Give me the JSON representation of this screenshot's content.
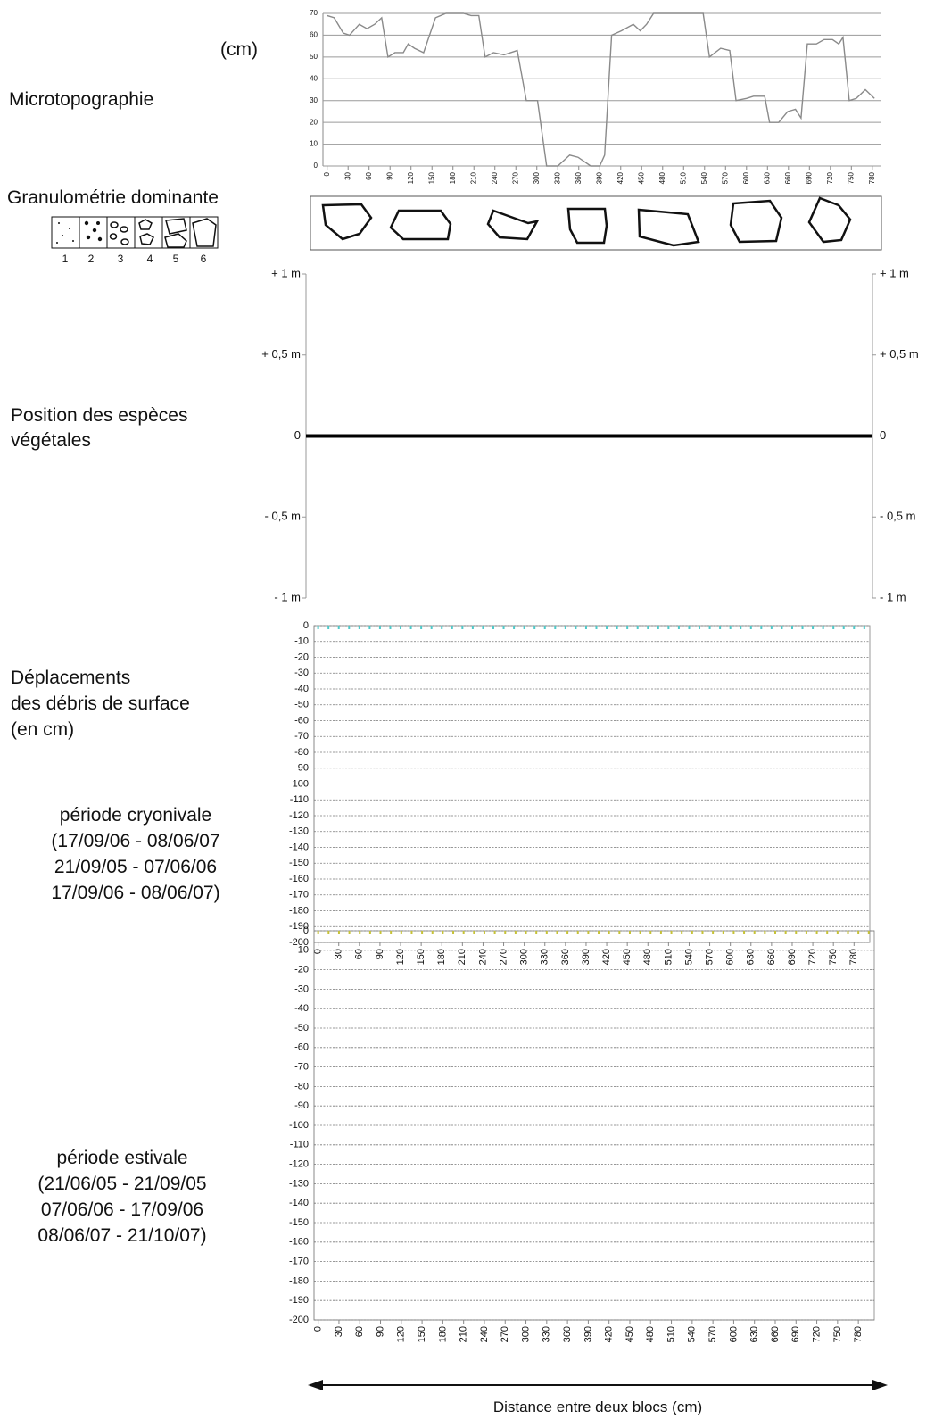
{
  "labels": {
    "unit": "(cm)",
    "microtopo": "Microtopographie",
    "granulo": "Granulométrie dominante",
    "granulo_classes": [
      "1",
      "2",
      "3",
      "4",
      "5",
      "6"
    ],
    "position": [
      "Position des espèces",
      "végétales"
    ],
    "deplacements": [
      "Déplacements",
      "des débris de surface",
      "(en cm)"
    ],
    "cryo": [
      "période cryonivale",
      "(17/09/06 - 08/06/07",
      "21/09/05 - 07/06/06",
      "17/09/06 - 08/06/07)"
    ],
    "estival": [
      "période estivale",
      "(21/06/05 - 21/09/05",
      "07/06/06 - 17/09/06",
      "08/06/07 - 21/10/07)"
    ],
    "distance": "Distance entre deux blocs (cm)"
  },
  "chart_data": [
    {
      "type": "line",
      "color": "#8a8a8a",
      "grid": true,
      "x": [
        0,
        10,
        23,
        32,
        46,
        57,
        68,
        78,
        87,
        97,
        109,
        116,
        125,
        138,
        155,
        170,
        195,
        206,
        217,
        226,
        238,
        253,
        272,
        285,
        301,
        314,
        330,
        347,
        359,
        377,
        390,
        397,
        407,
        421,
        438,
        448,
        457,
        467,
        538,
        547,
        563,
        576,
        585,
        600,
        610,
        626,
        633,
        646,
        659,
        670,
        678,
        687,
        700,
        711,
        723,
        732,
        738,
        747,
        757,
        770,
        783
      ],
      "values": [
        69,
        68,
        61,
        60,
        65,
        63,
        65,
        68,
        50,
        52,
        52,
        56,
        54,
        52,
        68,
        70,
        70,
        69,
        69,
        50,
        52,
        51,
        53,
        30,
        30,
        0,
        0,
        5,
        4,
        0,
        0,
        5,
        60,
        62,
        65,
        62,
        65,
        70,
        70,
        50,
        54,
        53,
        30,
        31,
        32,
        32,
        20,
        20,
        25,
        26,
        22,
        56,
        56,
        58,
        58,
        56,
        59,
        30,
        31,
        35,
        31
      ],
      "xlim": [
        -6,
        793
      ],
      "ylim": [
        0,
        70
      ],
      "xticks": [
        0,
        30,
        60,
        90,
        120,
        150,
        180,
        210,
        240,
        270,
        300,
        330,
        360,
        390,
        420,
        450,
        480,
        510,
        540,
        570,
        600,
        630,
        660,
        690,
        720,
        750,
        780
      ],
      "yticks": [
        0,
        10,
        20,
        30,
        40,
        50,
        60,
        70
      ]
    },
    {
      "type": "axis",
      "ylim": [
        -1,
        1
      ],
      "yticks": [
        {
          "value": 1,
          "label": "+ 1 m"
        },
        {
          "value": 0.5,
          "label": "+ 0,5 m"
        },
        0,
        {
          "value": -0.5,
          "label": "- 0,5 m"
        },
        {
          "value": -1,
          "label": "- 1 m"
        }
      ],
      "y2lim": [
        -1,
        1
      ],
      "y2ticks": [
        {
          "value": 1,
          "label": "+ 1 m"
        },
        {
          "value": 0.5,
          "label": "+ 0,5 m"
        },
        0,
        {
          "value": -0.5,
          "label": "- 0,5 m"
        },
        {
          "value": -1,
          "label": "- 1 m"
        }
      ]
    },
    {
      "type": "scatter",
      "grid": true,
      "x": [
        0,
        15,
        30,
        45,
        60,
        75,
        90,
        105,
        120,
        135,
        150,
        165,
        180,
        195,
        210,
        225,
        240,
        255,
        270,
        285,
        300,
        315,
        330,
        345,
        360,
        375,
        390,
        405,
        420,
        435,
        450,
        465,
        480,
        495,
        510,
        525,
        540,
        555,
        570,
        585,
        600,
        615,
        630,
        645,
        660,
        675,
        690,
        705,
        720,
        735,
        750,
        765,
        780,
        795
      ],
      "series": [
        {
          "color": "#4fc9c9",
          "values": [
            0,
            0,
            0,
            0,
            0,
            0,
            0,
            0,
            0,
            0,
            0,
            0,
            0,
            0,
            0,
            0,
            0,
            0,
            0,
            0,
            0,
            0,
            0,
            0,
            0,
            0,
            0,
            0,
            0,
            0,
            0,
            0,
            0,
            0,
            0,
            0,
            0,
            0,
            0,
            0,
            0,
            0,
            0,
            0,
            0,
            0,
            0,
            0,
            0,
            0,
            0,
            0,
            0,
            0
          ]
        }
      ],
      "xlim": [
        -6,
        803
      ],
      "ylim": [
        -200,
        0
      ],
      "xticks": [
        0,
        30,
        60,
        90,
        120,
        150,
        180,
        210,
        240,
        270,
        300,
        330,
        360,
        390,
        420,
        450,
        480,
        510,
        540,
        570,
        600,
        630,
        660,
        690,
        720,
        750,
        780
      ],
      "yticks": [
        0,
        -10,
        -20,
        -30,
        -40,
        -50,
        -60,
        -70,
        -80,
        -90,
        -100,
        -110,
        -120,
        -130,
        -140,
        -150,
        -160,
        -170,
        -180,
        -190,
        -200
      ]
    },
    {
      "type": "scatter",
      "grid": true,
      "x": [
        0,
        15,
        30,
        45,
        60,
        75,
        90,
        105,
        120,
        135,
        150,
        165,
        180,
        195,
        210,
        225,
        240,
        255,
        270,
        285,
        300,
        315,
        330,
        345,
        360,
        375,
        390,
        405,
        420,
        435,
        450,
        465,
        480,
        495,
        510,
        525,
        540,
        555,
        570,
        585,
        600,
        615,
        630,
        645,
        660,
        675,
        690,
        705,
        720,
        735,
        750,
        765,
        780,
        795
      ],
      "series": [
        {
          "color": "#c6c238",
          "values": [
            0,
            0,
            0,
            0,
            0,
            0,
            0,
            0,
            0,
            0,
            0,
            0,
            0,
            0,
            0,
            0,
            0,
            0,
            0,
            0,
            0,
            0,
            0,
            0,
            0,
            0,
            0,
            0,
            0,
            0,
            0,
            0,
            0,
            0,
            0,
            0,
            0,
            0,
            0,
            0,
            0,
            0,
            0,
            0,
            0,
            0,
            0,
            0,
            0,
            0,
            0,
            0,
            0,
            0
          ]
        }
      ],
      "xlim": [
        -6,
        803
      ],
      "ylim": [
        -200,
        0
      ],
      "xticks": [
        0,
        30,
        60,
        90,
        120,
        150,
        180,
        210,
        240,
        270,
        300,
        330,
        360,
        390,
        420,
        450,
        480,
        510,
        540,
        570,
        600,
        630,
        660,
        690,
        720,
        750,
        780
      ],
      "yticks": [
        0,
        -10,
        -20,
        -30,
        -40,
        -50,
        -60,
        -70,
        -80,
        -90,
        -100,
        -110,
        -120,
        -130,
        -140,
        -150,
        -160,
        -170,
        -180,
        -190,
        -200
      ]
    }
  ]
}
